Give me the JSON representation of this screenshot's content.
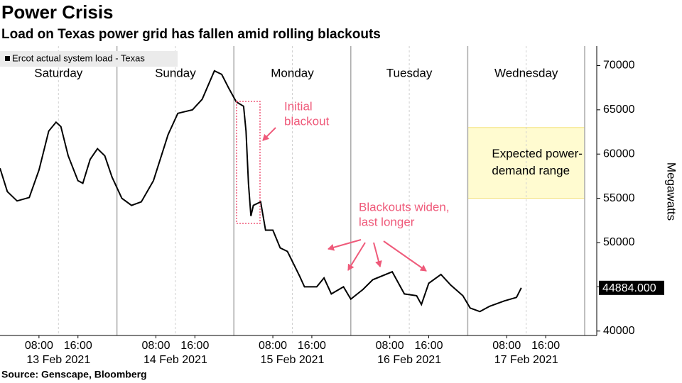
{
  "chart_data": {
    "type": "line",
    "title": "Power Crisis",
    "subtitle": "Load on Texas power grid has fallen amid rolling blackouts",
    "source": "Source: Genscape, Bloomberg",
    "y_label": "Megawatts",
    "series": [
      {
        "name": "Ercot actual system load - Texas",
        "color": "#000000",
        "x": [
          "2021-02-13T00:00",
          "2021-02-13T01:30",
          "2021-02-13T03:30",
          "2021-02-13T06:00",
          "2021-02-13T08:00",
          "2021-02-13T10:00",
          "2021-02-13T11:30",
          "2021-02-13T12:30",
          "2021-02-13T14:00",
          "2021-02-13T16:00",
          "2021-02-13T17:00",
          "2021-02-13T18:30",
          "2021-02-13T20:00",
          "2021-02-13T21:30",
          "2021-02-13T23:00",
          "2021-02-14T01:00",
          "2021-02-14T03:00",
          "2021-02-14T05:00",
          "2021-02-14T07:30",
          "2021-02-14T10:30",
          "2021-02-14T12:30",
          "2021-02-14T15:30",
          "2021-02-14T17:30",
          "2021-02-14T20:00",
          "2021-02-14T21:30",
          "2021-02-14T23:00",
          "2021-02-15T00:30",
          "2021-02-15T02:00",
          "2021-02-15T02:30",
          "2021-02-15T03:00",
          "2021-02-15T03:30",
          "2021-02-15T04:00",
          "2021-02-15T05:30",
          "2021-02-15T06:30",
          "2021-02-15T08:00",
          "2021-02-15T09:30",
          "2021-02-15T11:00",
          "2021-02-15T13:30",
          "2021-02-15T14:30",
          "2021-02-15T17:00",
          "2021-02-15T18:30",
          "2021-02-15T20:00",
          "2021-02-15T22:30",
          "2021-02-16T00:00",
          "2021-02-16T02:30",
          "2021-02-16T04:30",
          "2021-02-16T08:30",
          "2021-02-16T11:00",
          "2021-02-16T13:30",
          "2021-02-16T14:30",
          "2021-02-16T16:00",
          "2021-02-16T18:30",
          "2021-02-16T20:30",
          "2021-02-16T23:00",
          "2021-02-17T00:30",
          "2021-02-17T02:30",
          "2021-02-17T04:30",
          "2021-02-17T07:30",
          "2021-02-17T10:00",
          "2021-02-17T11:00"
        ],
        "values": [
          58400,
          55760,
          54700,
          55100,
          58200,
          62600,
          63600,
          63100,
          59800,
          57000,
          56700,
          59400,
          60600,
          59800,
          57400,
          55000,
          54200,
          54600,
          57000,
          62200,
          64600,
          65000,
          66200,
          69400,
          69000,
          67400,
          65900,
          65400,
          62600,
          56600,
          53000,
          54200,
          54600,
          51400,
          51400,
          49400,
          49000,
          46200,
          45000,
          45000,
          46000,
          44200,
          45000,
          43600,
          44700,
          45800,
          46700,
          44200,
          44000,
          43000,
          45400,
          46400,
          45200,
          44000,
          42600,
          42200,
          42800,
          43400,
          43800,
          44884
        ],
        "last_label": "44884.000"
      }
    ],
    "xlim": [
      "2021-02-13T00:00",
      "2021-02-18T00:00"
    ],
    "ylim": [
      39500,
      72200
    ],
    "yticks": [
      40000,
      45000,
      50000,
      55000,
      60000,
      65000,
      70000
    ],
    "xticks": [
      {
        "value": "2021-02-13T08:00",
        "label": "08:00"
      },
      {
        "value": "2021-02-13T16:00",
        "label": "16:00"
      },
      {
        "value": "2021-02-14T08:00",
        "label": "08:00"
      },
      {
        "value": "2021-02-14T16:00",
        "label": "16:00"
      },
      {
        "value": "2021-02-15T08:00",
        "label": "08:00"
      },
      {
        "value": "2021-02-15T16:00",
        "label": "16:00"
      },
      {
        "value": "2021-02-16T08:00",
        "label": "08:00"
      },
      {
        "value": "2021-02-16T16:00",
        "label": "16:00"
      },
      {
        "value": "2021-02-17T08:00",
        "label": "08:00"
      },
      {
        "value": "2021-02-17T16:00",
        "label": "16:00"
      }
    ],
    "date_labels": [
      {
        "value": "2021-02-13T12:00",
        "label": "13 Feb 2021"
      },
      {
        "value": "2021-02-14T12:00",
        "label": "14 Feb 2021"
      },
      {
        "value": "2021-02-15T12:00",
        "label": "15 Feb 2021"
      },
      {
        "value": "2021-02-16T12:00",
        "label": "16 Feb 2021"
      },
      {
        "value": "2021-02-17T12:00",
        "label": "17 Feb 2021"
      }
    ],
    "day_labels": [
      {
        "value": "2021-02-13T12:00",
        "label": "Saturday"
      },
      {
        "value": "2021-02-14T12:00",
        "label": "Sunday"
      },
      {
        "value": "2021-02-15T12:00",
        "label": "Monday"
      },
      {
        "value": "2021-02-16T12:00",
        "label": "Tuesday"
      },
      {
        "value": "2021-02-17T12:00",
        "label": "Wednesday"
      }
    ],
    "day_dividers": [
      "2021-02-14T00:00",
      "2021-02-15T00:00",
      "2021-02-16T00:00",
      "2021-02-17T00:00",
      "2021-02-18T00:00"
    ],
    "expected_range": {
      "label": [
        "Expected power-",
        "demand range"
      ],
      "x": [
        "2021-02-17T00:00",
        "2021-02-18T00:00"
      ],
      "y": [
        55000,
        63000
      ],
      "color": "#fffbd0"
    },
    "annotations": {
      "initial_blackout": [
        "Initial",
        "blackout"
      ],
      "blackouts_widen": [
        "Blackouts widen,",
        "last longer"
      ]
    }
  }
}
